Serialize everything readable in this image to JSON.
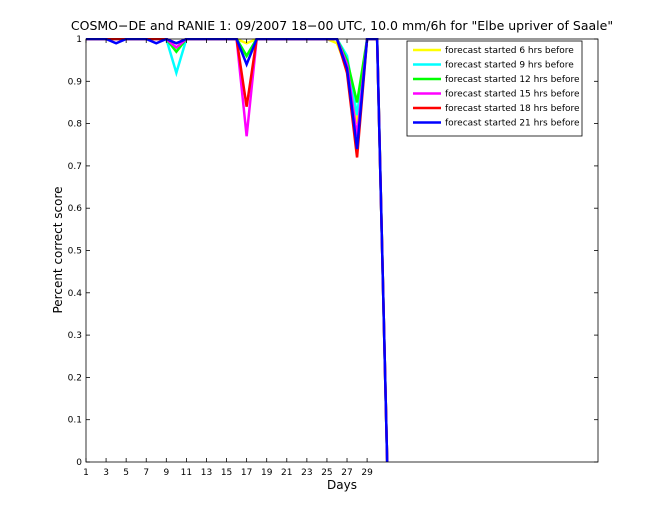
{
  "chart_data": {
    "type": "line",
    "title": "COSMO−DE and RANIE 1: 09/2007 18−00 UTC, 10.0 mm/6h for \"Elbe upriver of Saale\"",
    "xlabel": "Days",
    "ylabel": "Percent correct score",
    "xlim": [
      1,
      52
    ],
    "ylim": [
      0,
      1
    ],
    "xticks": [
      1,
      3,
      5,
      7,
      9,
      11,
      13,
      15,
      17,
      19,
      21,
      23,
      25,
      27,
      29
    ],
    "xtick_labels": [
      "1",
      "3",
      "5",
      "7",
      "9",
      "11",
      "13",
      "15",
      "17",
      "19",
      "21",
      "23",
      "25",
      "27",
      "29"
    ],
    "yticks": [
      0,
      0.1,
      0.2,
      0.3,
      0.4,
      0.5,
      0.6,
      0.7,
      0.8,
      0.9,
      1
    ],
    "ytick_labels": [
      "0",
      "0.1",
      "0.2",
      "0.3",
      "0.4",
      "0.5",
      "0.6",
      "0.7",
      "0.8",
      "0.9",
      "1"
    ],
    "grid": false,
    "legend_position": "top-right",
    "x": [
      1,
      2,
      3,
      4,
      5,
      6,
      7,
      8,
      9,
      10,
      11,
      12,
      13,
      14,
      15,
      16,
      17,
      18,
      19,
      20,
      21,
      22,
      23,
      24,
      25,
      26,
      27,
      28,
      29,
      30,
      31
    ],
    "series": [
      {
        "name": "forecast started 6 hrs before",
        "color": "#ffff00",
        "values": [
          1,
          1,
          1,
          1,
          1,
          1,
          1,
          1,
          1,
          0.99,
          1,
          1,
          1,
          1,
          1,
          1,
          0.99,
          1,
          1,
          1,
          1,
          1,
          1,
          1,
          1,
          0.99,
          0.93,
          0.8,
          1,
          1,
          0
        ]
      },
      {
        "name": "forecast started 9 hrs before",
        "color": "#00ffff",
        "values": [
          1,
          1,
          1,
          1,
          1,
          1,
          1,
          1,
          1,
          0.92,
          1,
          1,
          1,
          1,
          1,
          1,
          0.96,
          1,
          1,
          1,
          1,
          1,
          1,
          1,
          1,
          1,
          0.96,
          0.82,
          1,
          1,
          0
        ]
      },
      {
        "name": "forecast started 12 hrs before",
        "color": "#00ff00",
        "values": [
          1,
          1,
          1,
          1,
          1,
          1,
          1,
          1,
          1,
          0.97,
          1,
          1,
          1,
          1,
          1,
          1,
          0.96,
          1,
          1,
          1,
          1,
          1,
          1,
          1,
          1,
          1,
          0.95,
          0.85,
          1,
          1,
          0
        ]
      },
      {
        "name": "forecast started 15 hrs before",
        "color": "#ff00ff",
        "values": [
          1,
          1,
          1,
          1,
          1,
          1,
          1,
          1,
          1,
          0.98,
          1,
          1,
          1,
          1,
          1,
          1,
          0.77,
          1,
          1,
          1,
          1,
          1,
          1,
          1,
          1,
          1,
          0.94,
          0.77,
          1,
          1,
          0
        ]
      },
      {
        "name": "forecast started 18 hrs before",
        "color": "#ff0000",
        "values": [
          1,
          1,
          1,
          1,
          1,
          1,
          1,
          1,
          1,
          0.99,
          1,
          1,
          1,
          1,
          1,
          1,
          0.84,
          1,
          1,
          1,
          1,
          1,
          1,
          1,
          1,
          1,
          0.92,
          0.72,
          1,
          1,
          0
        ]
      },
      {
        "name": "forecast started 21 hrs before",
        "color": "#0000ff",
        "values": [
          1,
          1,
          1,
          0.99,
          1,
          1,
          1,
          0.99,
          1,
          0.99,
          1,
          1,
          1,
          1,
          1,
          1,
          0.94,
          1,
          1,
          1,
          1,
          1,
          1,
          1,
          1,
          1,
          0.93,
          0.74,
          1,
          1,
          0
        ]
      }
    ]
  }
}
